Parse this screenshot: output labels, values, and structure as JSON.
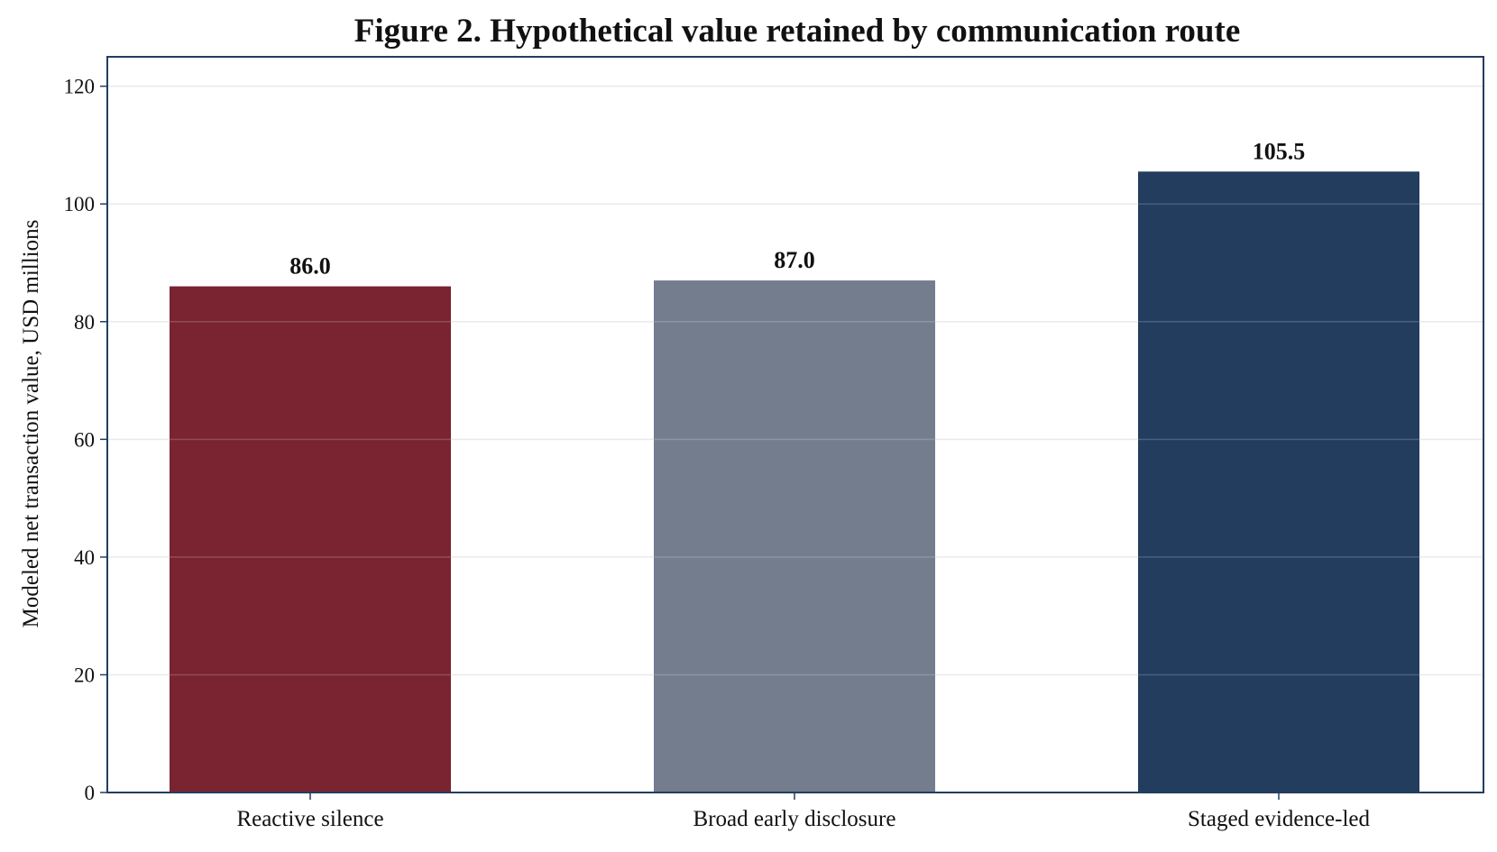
{
  "chart_data": {
    "type": "bar",
    "title": "Figure 2. Hypothetical value retained by communication route",
    "xlabel": "",
    "ylabel": "Modeled net transaction value, USD millions",
    "categories": [
      "Reactive silence",
      "Broad early disclosure",
      "Staged evidence-led"
    ],
    "values": [
      86.0,
      87.0,
      105.5
    ],
    "value_labels": [
      "86.0",
      "87.0",
      "105.5"
    ],
    "colors": [
      "#7a2431",
      "#737d8e",
      "#233d5f"
    ],
    "ylim": [
      0,
      125
    ],
    "yticks": [
      0,
      20,
      40,
      60,
      80,
      100,
      120
    ],
    "grid": true,
    "legend": "none",
    "frame_color": "#233d5f"
  }
}
